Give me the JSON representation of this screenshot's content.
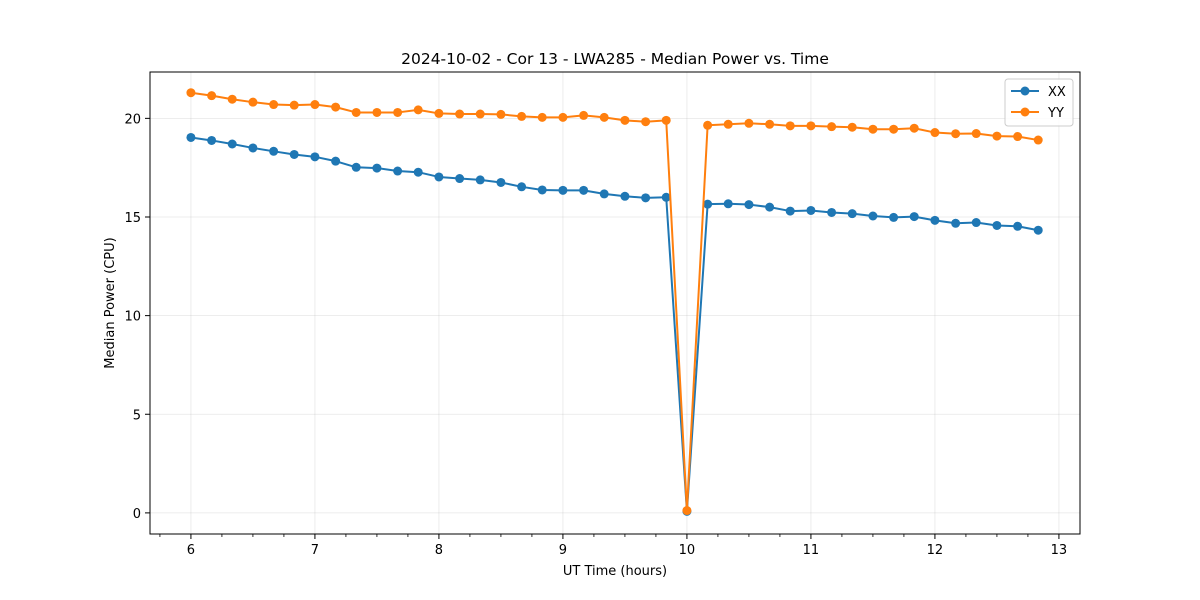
{
  "chart_data": {
    "type": "line",
    "title": "2024-10-02 - Cor 13 - LWA285 - Median Power vs. Time",
    "xlabel": "UT Time (hours)",
    "ylabel": "Median Power (CPU)",
    "xlim": [
      5.67,
      13.17
    ],
    "ylim": [
      -1.07,
      22.35
    ],
    "xticks": [
      6,
      7,
      8,
      9,
      10,
      11,
      12,
      13
    ],
    "yticks": [
      0,
      5,
      10,
      15,
      20
    ],
    "minor_xtick_step": 0.25,
    "grid": true,
    "legend_position": "top-right",
    "x": [
      6.0,
      6.167,
      6.333,
      6.5,
      6.667,
      6.833,
      7.0,
      7.167,
      7.333,
      7.5,
      7.667,
      7.833,
      8.0,
      8.167,
      8.333,
      8.5,
      8.667,
      8.833,
      9.0,
      9.167,
      9.333,
      9.5,
      9.667,
      9.833,
      10.0,
      10.167,
      10.333,
      10.5,
      10.667,
      10.833,
      11.0,
      11.167,
      11.333,
      11.5,
      11.667,
      11.833,
      12.0,
      12.167,
      12.333,
      12.5,
      12.667,
      12.833
    ],
    "series": [
      {
        "name": "XX",
        "color": "#1f77b4",
        "values": [
          19.03,
          18.88,
          18.7,
          18.5,
          18.33,
          18.17,
          18.05,
          17.83,
          17.52,
          17.48,
          17.33,
          17.27,
          17.03,
          16.95,
          16.88,
          16.75,
          16.53,
          16.37,
          16.35,
          16.35,
          16.17,
          16.05,
          15.97,
          16.0,
          0.08,
          15.65,
          15.67,
          15.63,
          15.5,
          15.3,
          15.33,
          15.23,
          15.17,
          15.05,
          14.98,
          15.02,
          14.83,
          14.68,
          14.72,
          14.57,
          14.53,
          14.33
        ]
      },
      {
        "name": "YY",
        "color": "#ff7f0e",
        "values": [
          21.3,
          21.15,
          20.97,
          20.82,
          20.7,
          20.67,
          20.7,
          20.57,
          20.3,
          20.3,
          20.3,
          20.43,
          20.25,
          20.22,
          20.22,
          20.2,
          20.1,
          20.05,
          20.05,
          20.15,
          20.05,
          19.9,
          19.83,
          19.9,
          0.12,
          19.65,
          19.7,
          19.75,
          19.7,
          19.62,
          19.62,
          19.58,
          19.55,
          19.45,
          19.45,
          19.5,
          19.28,
          19.22,
          19.23,
          19.1,
          19.08,
          18.9
        ]
      }
    ]
  }
}
